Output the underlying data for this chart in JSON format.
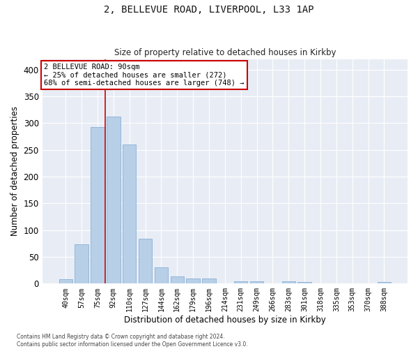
{
  "title_line1": "2, BELLEVUE ROAD, LIVERPOOL, L33 1AP",
  "title_line2": "Size of property relative to detached houses in Kirkby",
  "xlabel": "Distribution of detached houses by size in Kirkby",
  "ylabel": "Number of detached properties",
  "categories": [
    "40sqm",
    "57sqm",
    "75sqm",
    "92sqm",
    "110sqm",
    "127sqm",
    "144sqm",
    "162sqm",
    "179sqm",
    "196sqm",
    "214sqm",
    "231sqm",
    "249sqm",
    "266sqm",
    "283sqm",
    "301sqm",
    "318sqm",
    "335sqm",
    "353sqm",
    "370sqm",
    "388sqm"
  ],
  "values": [
    8,
    74,
    293,
    313,
    260,
    84,
    30,
    14,
    9,
    9,
    0,
    5,
    5,
    0,
    5,
    3,
    0,
    0,
    0,
    0,
    3
  ],
  "bar_color": "#b8cfe8",
  "bar_edge_color": "#8aafd4",
  "vline_color": "#cc0000",
  "vline_x_index": 2.5,
  "annotation_text": "2 BELLEVUE ROAD: 90sqm\n← 25% of detached houses are smaller (272)\n68% of semi-detached houses are larger (748) →",
  "annotation_box_facecolor": "#ffffff",
  "annotation_box_edgecolor": "#cc0000",
  "ylim": [
    0,
    420
  ],
  "yticks": [
    0,
    50,
    100,
    150,
    200,
    250,
    300,
    350,
    400
  ],
  "bg_color": "#e8edf5",
  "fig_bg_color": "#ffffff",
  "grid_color": "#ffffff",
  "footer_line1": "Contains HM Land Registry data © Crown copyright and database right 2024.",
  "footer_line2": "Contains public sector information licensed under the Open Government Licence v3.0."
}
